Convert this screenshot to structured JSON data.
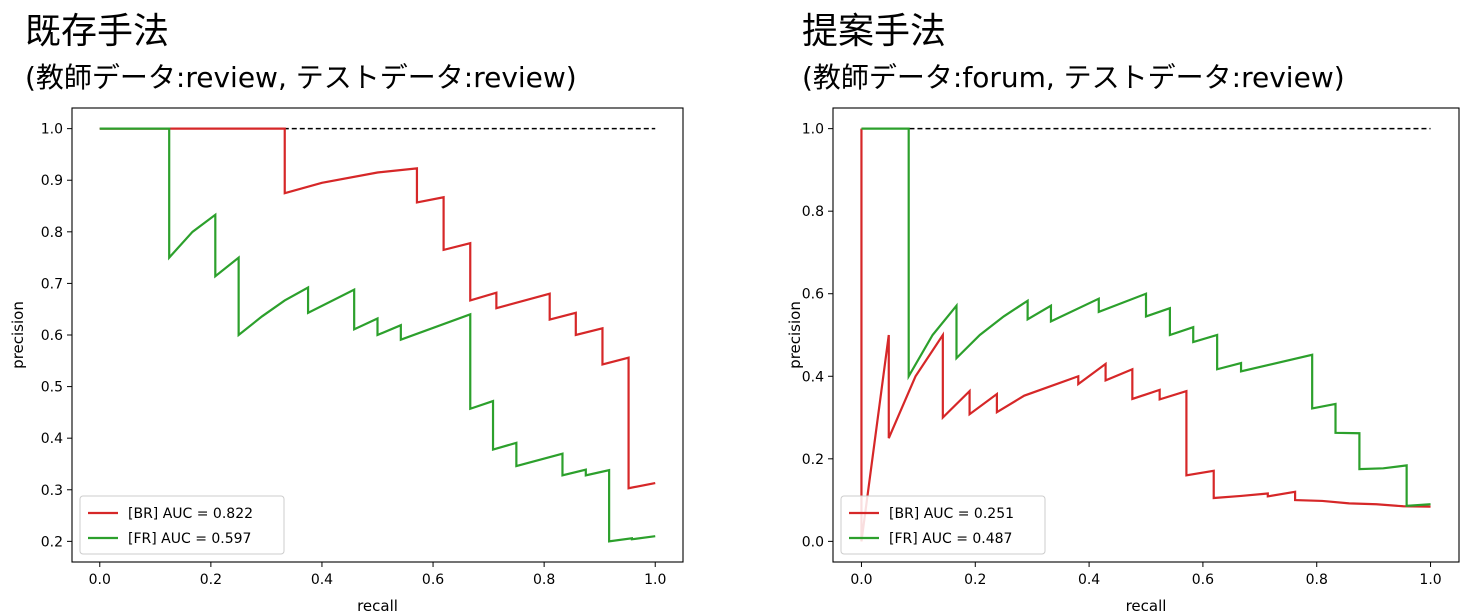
{
  "charts": [
    {
      "heading": "既存手法",
      "subheading": "(教師データ:review,  テストデータ:review)"
    },
    {
      "heading": "提案手法",
      "subheading": "(教師データ:forum,  テストデータ:review)"
    }
  ],
  "chart_data": [
    {
      "type": "line",
      "title": "既存手法 (教師データ:review, テストデータ:review)",
      "xlabel": "recall",
      "ylabel": "precision",
      "xlim": [
        0.0,
        1.0
      ],
      "ylim": [
        0.2,
        1.0
      ],
      "xticks": [
        0.0,
        0.2,
        0.4,
        0.6,
        0.8,
        1.0
      ],
      "xtick_labels": [
        "0.0",
        "0.2",
        "0.4",
        "0.6",
        "0.8",
        "1.0"
      ],
      "yticks": [
        0.2,
        0.3,
        0.4,
        0.5,
        0.6,
        0.7,
        0.8,
        0.9,
        1.0
      ],
      "ytick_labels": [
        "0.2",
        "0.3",
        "0.4",
        "0.5",
        "0.6",
        "0.7",
        "0.8",
        "0.9",
        "1.0"
      ],
      "legend_position": "lower-left",
      "grid": false,
      "reference_line": {
        "y": 1.0,
        "style": "dashed",
        "color": "#000000",
        "x": [
          0.0,
          1.0
        ]
      },
      "series": [
        {
          "name": "[BR] AUC = 0.822",
          "color": "#d62728",
          "points": [
            [
              0.0,
              1.0
            ],
            [
              0.333,
              1.0
            ],
            [
              0.333,
              0.875
            ],
            [
              0.4,
              0.895
            ],
            [
              0.5,
              0.915
            ],
            [
              0.571,
              0.923
            ],
            [
              0.571,
              0.857
            ],
            [
              0.619,
              0.867
            ],
            [
              0.619,
              0.765
            ],
            [
              0.667,
              0.778
            ],
            [
              0.667,
              0.667
            ],
            [
              0.714,
              0.682
            ],
            [
              0.714,
              0.652
            ],
            [
              0.81,
              0.68
            ],
            [
              0.81,
              0.63
            ],
            [
              0.857,
              0.643
            ],
            [
              0.857,
              0.6
            ],
            [
              0.905,
              0.613
            ],
            [
              0.905,
              0.543
            ],
            [
              0.952,
              0.556
            ],
            [
              0.952,
              0.303
            ],
            [
              1.0,
              0.313
            ]
          ]
        },
        {
          "name": "[FR] AUC = 0.597",
          "color": "#2ca02c",
          "points": [
            [
              0.0,
              1.0
            ],
            [
              0.125,
              1.0
            ],
            [
              0.125,
              0.75
            ],
            [
              0.167,
              0.8
            ],
            [
              0.208,
              0.833
            ],
            [
              0.208,
              0.714
            ],
            [
              0.25,
              0.75
            ],
            [
              0.25,
              0.6
            ],
            [
              0.292,
              0.636
            ],
            [
              0.333,
              0.667
            ],
            [
              0.375,
              0.692
            ],
            [
              0.375,
              0.643
            ],
            [
              0.458,
              0.688
            ],
            [
              0.458,
              0.611
            ],
            [
              0.5,
              0.632
            ],
            [
              0.5,
              0.6
            ],
            [
              0.542,
              0.619
            ],
            [
              0.542,
              0.591
            ],
            [
              0.667,
              0.64
            ],
            [
              0.667,
              0.457
            ],
            [
              0.708,
              0.472
            ],
            [
              0.708,
              0.378
            ],
            [
              0.75,
              0.391
            ],
            [
              0.75,
              0.346
            ],
            [
              0.833,
              0.37
            ],
            [
              0.833,
              0.328
            ],
            [
              0.875,
              0.339
            ],
            [
              0.875,
              0.328
            ],
            [
              0.917,
              0.338
            ],
            [
              0.917,
              0.2
            ],
            [
              0.958,
              0.206
            ],
            [
              0.958,
              0.204
            ],
            [
              1.0,
              0.21
            ]
          ]
        }
      ]
    },
    {
      "type": "line",
      "title": "提案手法 (教師データ:forum, テストデータ:review)",
      "xlabel": "recall",
      "ylabel": "precision",
      "xlim": [
        0.0,
        1.0
      ],
      "ylim": [
        0.0,
        1.0
      ],
      "xticks": [
        0.0,
        0.2,
        0.4,
        0.6,
        0.8,
        1.0
      ],
      "xtick_labels": [
        "0.0",
        "0.2",
        "0.4",
        "0.6",
        "0.8",
        "1.0"
      ],
      "yticks": [
        0.0,
        0.2,
        0.4,
        0.6,
        0.8,
        1.0
      ],
      "ytick_labels": [
        "0.0",
        "0.2",
        "0.4",
        "0.6",
        "0.8",
        "1.0"
      ],
      "legend_position": "lower-left",
      "grid": false,
      "reference_line": {
        "y": 1.0,
        "style": "dashed",
        "color": "#000000",
        "x": [
          0.0,
          1.0
        ]
      },
      "series": [
        {
          "name": "[BR] AUC = 0.251",
          "color": "#d62728",
          "points": [
            [
              0.0,
              0.0
            ],
            [
              0.0,
              1.0
            ],
            [
              0.0,
              0.0
            ],
            [
              0.048,
              0.5
            ],
            [
              0.048,
              0.25
            ],
            [
              0.095,
              0.4
            ],
            [
              0.143,
              0.5
            ],
            [
              0.143,
              0.3
            ],
            [
              0.19,
              0.364
            ],
            [
              0.19,
              0.308
            ],
            [
              0.238,
              0.357
            ],
            [
              0.238,
              0.313
            ],
            [
              0.286,
              0.353
            ],
            [
              0.381,
              0.4
            ],
            [
              0.381,
              0.381
            ],
            [
              0.429,
              0.43
            ],
            [
              0.429,
              0.39
            ],
            [
              0.476,
              0.417
            ],
            [
              0.476,
              0.345
            ],
            [
              0.524,
              0.367
            ],
            [
              0.524,
              0.344
            ],
            [
              0.571,
              0.364
            ],
            [
              0.571,
              0.16
            ],
            [
              0.619,
              0.171
            ],
            [
              0.619,
              0.105
            ],
            [
              0.667,
              0.11
            ],
            [
              0.714,
              0.116
            ],
            [
              0.714,
              0.109
            ],
            [
              0.762,
              0.12
            ],
            [
              0.762,
              0.1
            ],
            [
              0.81,
              0.098
            ],
            [
              0.857,
              0.092
            ],
            [
              0.905,
              0.09
            ],
            [
              0.952,
              0.085
            ],
            [
              1.0,
              0.084
            ]
          ]
        },
        {
          "name": "[FR] AUC = 0.487",
          "color": "#2ca02c",
          "points": [
            [
              0.0,
              1.0
            ],
            [
              0.083,
              1.0
            ],
            [
              0.083,
              0.4
            ],
            [
              0.125,
              0.5
            ],
            [
              0.167,
              0.571
            ],
            [
              0.167,
              0.444
            ],
            [
              0.208,
              0.5
            ],
            [
              0.25,
              0.545
            ],
            [
              0.292,
              0.583
            ],
            [
              0.292,
              0.538
            ],
            [
              0.333,
              0.571
            ],
            [
              0.333,
              0.533
            ],
            [
              0.417,
              0.588
            ],
            [
              0.417,
              0.556
            ],
            [
              0.5,
              0.6
            ],
            [
              0.5,
              0.545
            ],
            [
              0.542,
              0.565
            ],
            [
              0.542,
              0.5
            ],
            [
              0.583,
              0.519
            ],
            [
              0.583,
              0.483
            ],
            [
              0.625,
              0.5
            ],
            [
              0.625,
              0.417
            ],
            [
              0.667,
              0.432
            ],
            [
              0.667,
              0.412
            ],
            [
              0.792,
              0.452
            ],
            [
              0.792,
              0.322
            ],
            [
              0.833,
              0.333
            ],
            [
              0.833,
              0.263
            ],
            [
              0.875,
              0.262
            ],
            [
              0.875,
              0.175
            ],
            [
              0.917,
              0.177
            ],
            [
              0.958,
              0.184
            ],
            [
              0.958,
              0.086
            ],
            [
              1.0,
              0.09
            ]
          ]
        }
      ]
    }
  ]
}
